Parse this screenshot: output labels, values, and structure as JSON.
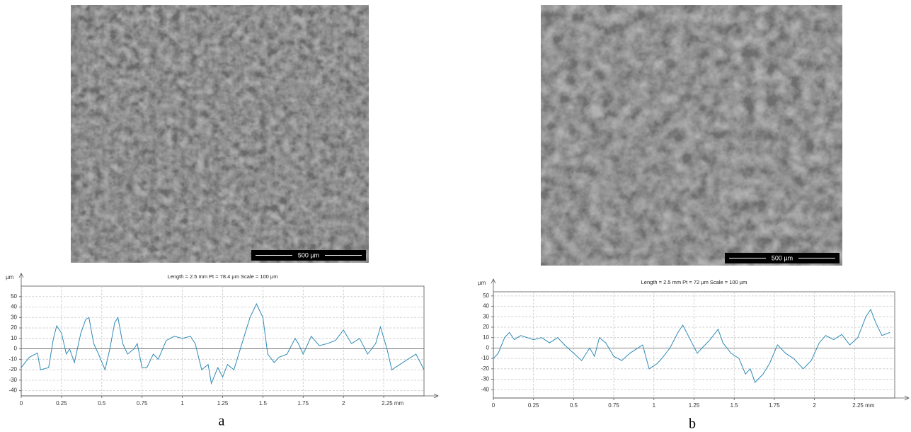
{
  "chart_data": [
    {
      "type": "line",
      "panel_label": "a",
      "scale_bar_label": "500 µm",
      "title": "Length = 2.5 mm  Pt = 78.4 µm  Scale = 100 µm",
      "y_label": "µm",
      "x": [
        0,
        0.05,
        0.1,
        0.12,
        0.17,
        0.2,
        0.22,
        0.25,
        0.28,
        0.3,
        0.33,
        0.37,
        0.4,
        0.42,
        0.45,
        0.48,
        0.52,
        0.55,
        0.58,
        0.6,
        0.63,
        0.66,
        0.7,
        0.72,
        0.75,
        0.78,
        0.82,
        0.85,
        0.9,
        0.95,
        1.0,
        1.05,
        1.08,
        1.12,
        1.16,
        1.18,
        1.22,
        1.25,
        1.28,
        1.32,
        1.37,
        1.42,
        1.46,
        1.5,
        1.53,
        1.57,
        1.6,
        1.65,
        1.7,
        1.72,
        1.75,
        1.8,
        1.85,
        1.9,
        1.95,
        2.0,
        2.05,
        2.1,
        2.15,
        2.2,
        2.23,
        2.27,
        2.3,
        2.35,
        2.4,
        2.45,
        2.5
      ],
      "values": [
        -18,
        -8,
        -4,
        -20,
        -18,
        10,
        22,
        15,
        -5,
        0,
        -13,
        15,
        28,
        30,
        5,
        -5,
        -20,
        0,
        25,
        30,
        5,
        -5,
        0,
        5,
        -18,
        -18,
        -5,
        -10,
        8,
        12,
        10,
        12,
        5,
        -20,
        -15,
        -33,
        -18,
        -27,
        -15,
        -20,
        5,
        30,
        43,
        30,
        -5,
        -13,
        -8,
        -5,
        10,
        5,
        -5,
        12,
        3,
        5,
        8,
        18,
        5,
        10,
        -5,
        5,
        21,
        0,
        -20,
        -15,
        -10,
        -5,
        -20
      ],
      "color": "#2e8bb5",
      "xlim": [
        0,
        2.5
      ],
      "ylim": [
        -45,
        60
      ],
      "xticks": [
        0,
        0.25,
        0.5,
        0.75,
        1,
        1.25,
        1.5,
        1.75,
        2,
        {
          "value": 2.25,
          "label": "2.25 mm"
        }
      ],
      "yticks": [
        -40,
        -30,
        -20,
        -10,
        0,
        10,
        20,
        30,
        40,
        50
      ],
      "grid": true
    },
    {
      "type": "line",
      "panel_label": "b",
      "scale_bar_label": "500 µm",
      "title": "Length = 2.5 mm  Pt = 72 µm  Scale = 100 µm",
      "y_label": "µm",
      "x": [
        0,
        0.03,
        0.07,
        0.1,
        0.13,
        0.17,
        0.25,
        0.3,
        0.35,
        0.4,
        0.45,
        0.5,
        0.55,
        0.6,
        0.63,
        0.66,
        0.7,
        0.75,
        0.8,
        0.85,
        0.9,
        0.93,
        0.97,
        1.02,
        1.05,
        1.1,
        1.15,
        1.18,
        1.22,
        1.27,
        1.3,
        1.35,
        1.4,
        1.43,
        1.48,
        1.53,
        1.57,
        1.6,
        1.63,
        1.68,
        1.72,
        1.77,
        1.82,
        1.87,
        1.93,
        1.98,
        2.03,
        2.07,
        2.12,
        2.17,
        2.22,
        2.27,
        2.32,
        2.35,
        2.38,
        2.42,
        2.47
      ],
      "values": [
        -10,
        -5,
        10,
        15,
        8,
        12,
        8,
        10,
        5,
        10,
        2,
        -5,
        -12,
        0,
        -8,
        10,
        5,
        -8,
        -12,
        -5,
        0,
        3,
        -20,
        -15,
        -10,
        0,
        15,
        22,
        10,
        -5,
        0,
        8,
        18,
        5,
        -5,
        -10,
        -25,
        -20,
        -33,
        -25,
        -15,
        3,
        -5,
        -10,
        -20,
        -12,
        5,
        12,
        8,
        13,
        3,
        10,
        30,
        37,
        25,
        12,
        15
      ],
      "color": "#2e8bb5",
      "xlim": [
        0,
        2.5
      ],
      "ylim": [
        -48,
        54
      ],
      "xticks": [
        0,
        0.25,
        0.5,
        0.75,
        1,
        1.25,
        1.5,
        1.75,
        2,
        {
          "value": 2.25,
          "label": "2.25 mm"
        }
      ],
      "yticks": [
        -40,
        -30,
        -20,
        -10,
        0,
        10,
        20,
        30,
        40,
        50
      ],
      "grid": true
    }
  ]
}
